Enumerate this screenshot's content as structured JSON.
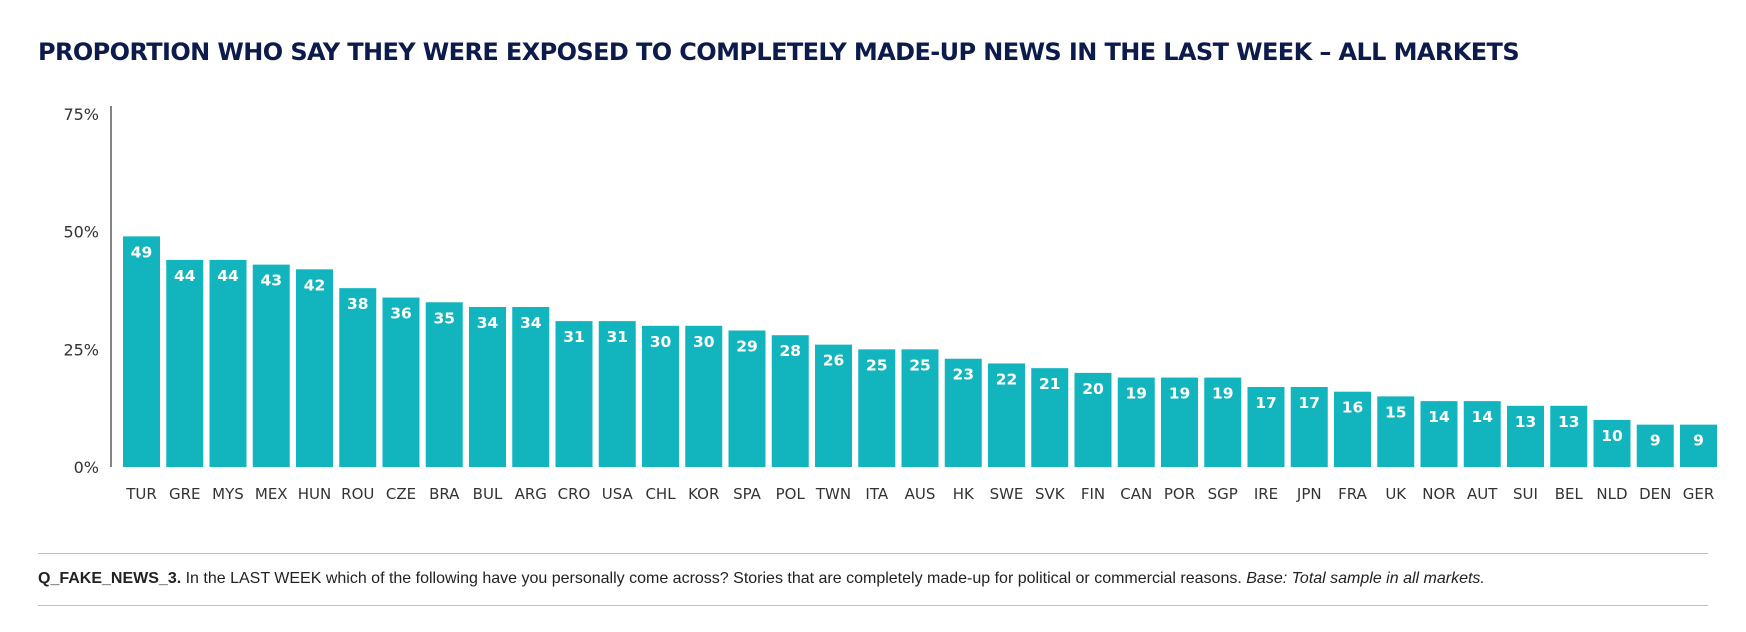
{
  "title": "PROPORTION WHO SAY THEY WERE EXPOSED TO COMPLETELY MADE-UP NEWS IN THE LAST WEEK – ALL MARKETS",
  "colors": {
    "bar": "#12b5be",
    "title": "#0d1b4c",
    "axis": "#333333",
    "rule": "#bfbfbf"
  },
  "chart_data": {
    "type": "bar",
    "title": "PROPORTION WHO SAY THEY WERE EXPOSED TO COMPLETELY MADE-UP NEWS IN THE LAST WEEK – ALL MARKETS",
    "categories": [
      "TUR",
      "GRE",
      "MYS",
      "MEX",
      "HUN",
      "ROU",
      "CZE",
      "BRA",
      "BUL",
      "ARG",
      "CRO",
      "USA",
      "CHL",
      "KOR",
      "SPA",
      "POL",
      "TWN",
      "ITA",
      "AUS",
      "HK",
      "SWE",
      "SVK",
      "FIN",
      "CAN",
      "POR",
      "SGP",
      "IRE",
      "JPN",
      "FRA",
      "UK",
      "NOR",
      "AUT",
      "SUI",
      "BEL",
      "NLD",
      "DEN",
      "GER"
    ],
    "values": [
      49,
      44,
      44,
      43,
      42,
      38,
      36,
      35,
      34,
      34,
      31,
      31,
      30,
      30,
      29,
      28,
      26,
      25,
      25,
      23,
      22,
      21,
      20,
      19,
      19,
      19,
      17,
      17,
      16,
      15,
      14,
      14,
      13,
      13,
      10,
      9,
      9
    ],
    "yticks": [
      0,
      25,
      50,
      75
    ],
    "ytick_labels": [
      "0%",
      "25%",
      "50%",
      "75%"
    ],
    "ylim": [
      0,
      75
    ],
    "grid": false,
    "data_labels": "inside-top"
  },
  "footnote": {
    "question_id": "Q_FAKE_NEWS_3.",
    "question": " In the LAST WEEK which of the following have you personally come across? Stories that are completely made-up for political or commercial reasons. ",
    "base": "Base: Total sample in all markets."
  }
}
